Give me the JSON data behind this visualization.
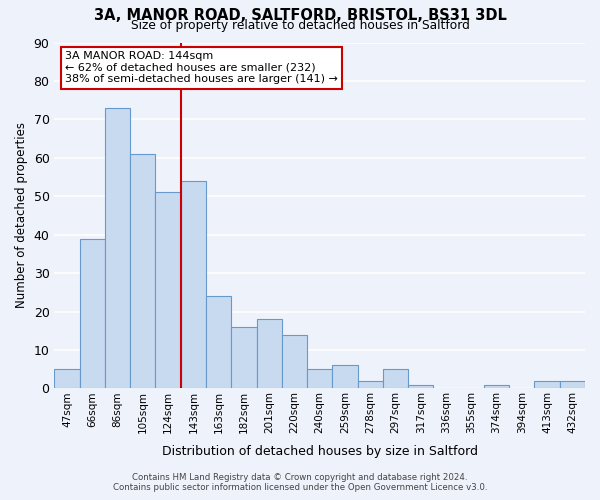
{
  "title_line1": "3A, MANOR ROAD, SALTFORD, BRISTOL, BS31 3DL",
  "title_line2": "Size of property relative to detached houses in Saltford",
  "xlabel": "Distribution of detached houses by size in Saltford",
  "ylabel": "Number of detached properties",
  "bar_labels": [
    "47sqm",
    "66sqm",
    "86sqm",
    "105sqm",
    "124sqm",
    "143sqm",
    "163sqm",
    "182sqm",
    "201sqm",
    "220sqm",
    "240sqm",
    "259sqm",
    "278sqm",
    "297sqm",
    "317sqm",
    "336sqm",
    "355sqm",
    "374sqm",
    "394sqm",
    "413sqm",
    "432sqm"
  ],
  "bar_values": [
    5,
    39,
    73,
    61,
    51,
    54,
    24,
    16,
    18,
    14,
    5,
    6,
    2,
    5,
    1,
    0,
    0,
    1,
    0,
    2,
    2
  ],
  "bar_color": "#c8daf0",
  "bar_edge_color": "#6699cc",
  "vline_color": "#cc0000",
  "annotation_text": "3A MANOR ROAD: 144sqm\n← 62% of detached houses are smaller (232)\n38% of semi-detached houses are larger (141) →",
  "annotation_box_color": "white",
  "annotation_box_edgecolor": "#cc0000",
  "ylim": [
    0,
    90
  ],
  "yticks": [
    0,
    10,
    20,
    30,
    40,
    50,
    60,
    70,
    80,
    90
  ],
  "footer_line1": "Contains HM Land Registry data © Crown copyright and database right 2024.",
  "footer_line2": "Contains public sector information licensed under the Open Government Licence v3.0.",
  "background_color": "#eef2fb",
  "grid_color": "white"
}
